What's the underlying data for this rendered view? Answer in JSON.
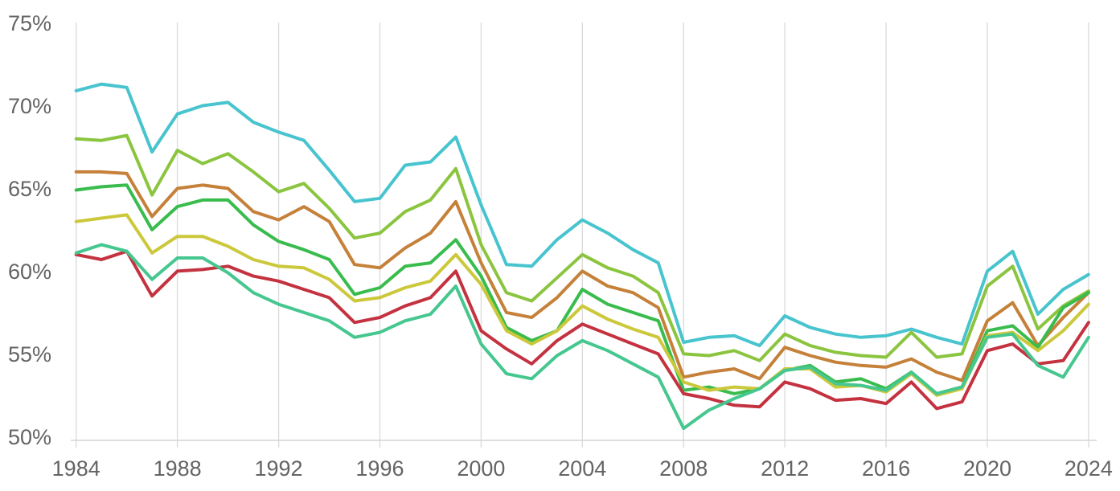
{
  "chart_data": {
    "type": "line",
    "title": "",
    "xlabel": "",
    "ylabel": "",
    "legend": "none",
    "grid": "vertical-only",
    "xlim": [
      1984,
      2024
    ],
    "ylim": [
      50,
      75
    ],
    "y_tick_labels": [
      "75%",
      "70%",
      "65%",
      "60%",
      "55%",
      "50%"
    ],
    "y_tick_values": [
      75,
      70,
      65,
      60,
      55,
      50
    ],
    "x_tick_labels": [
      "1984",
      "1988",
      "1992",
      "1996",
      "2000",
      "2004",
      "2008",
      "2012",
      "2016",
      "2020",
      "2024"
    ],
    "x_tick_values": [
      1984,
      1988,
      1992,
      1996,
      2000,
      2004,
      2008,
      2012,
      2016,
      2020,
      2024
    ],
    "x": [
      1984,
      1985,
      1986,
      1987,
      1988,
      1989,
      1990,
      1991,
      1992,
      1993,
      1994,
      1995,
      1996,
      1997,
      1998,
      1999,
      2000,
      2001,
      2002,
      2003,
      2004,
      2005,
      2006,
      2007,
      2008,
      2009,
      2010,
      2011,
      2012,
      2013,
      2014,
      2015,
      2016,
      2017,
      2018,
      2019,
      2020,
      2021,
      2022,
      2023,
      2024
    ],
    "series": [
      {
        "name": "cyan",
        "color": "#48C4CF",
        "values": [
          70.9,
          71.3,
          71.1,
          67.2,
          69.5,
          70.0,
          70.2,
          69.0,
          68.4,
          67.9,
          66.1,
          64.2,
          64.4,
          66.4,
          66.6,
          68.1,
          64.0,
          60.4,
          60.3,
          61.9,
          63.1,
          62.3,
          61.3,
          60.5,
          55.7,
          56.0,
          56.1,
          55.5,
          57.3,
          56.6,
          56.2,
          56.0,
          56.1,
          56.5,
          56.0,
          55.6,
          60.0,
          61.2,
          57.4,
          58.9,
          59.8
        ]
      },
      {
        "name": "yellow-green",
        "color": "#8BC53F",
        "values": [
          68.0,
          67.9,
          68.2,
          64.6,
          67.3,
          66.5,
          67.1,
          66.0,
          64.8,
          65.3,
          63.8,
          62.0,
          62.3,
          63.6,
          64.3,
          66.2,
          61.6,
          58.7,
          58.2,
          59.6,
          61.0,
          60.2,
          59.7,
          58.7,
          55.0,
          54.9,
          55.2,
          54.6,
          56.2,
          55.5,
          55.1,
          54.9,
          54.8,
          56.3,
          54.8,
          55.0,
          59.1,
          60.3,
          56.5,
          57.9,
          58.8
        ]
      },
      {
        "name": "orange",
        "color": "#C5813A",
        "values": [
          66.0,
          66.0,
          65.9,
          63.3,
          65.0,
          65.2,
          65.0,
          63.6,
          63.1,
          63.9,
          63.0,
          60.4,
          60.2,
          61.4,
          62.3,
          64.2,
          60.5,
          57.5,
          57.2,
          58.4,
          60.0,
          59.1,
          58.7,
          57.8,
          53.6,
          53.9,
          54.1,
          53.5,
          55.4,
          54.9,
          54.5,
          54.3,
          54.2,
          54.7,
          53.9,
          53.4,
          57.0,
          58.1,
          55.5,
          57.2,
          58.7
        ]
      },
      {
        "name": "green",
        "color": "#39BC4D",
        "values": [
          64.9,
          65.1,
          65.2,
          62.5,
          63.9,
          64.3,
          64.3,
          62.8,
          61.8,
          61.3,
          60.7,
          58.6,
          59.0,
          60.3,
          60.5,
          61.9,
          59.7,
          56.6,
          55.8,
          56.4,
          58.9,
          58.0,
          57.5,
          57.0,
          52.8,
          53.0,
          52.6,
          52.9,
          54.0,
          54.3,
          53.3,
          53.5,
          52.9,
          53.9,
          52.6,
          53.0,
          56.4,
          56.7,
          55.4,
          57.8,
          58.7
        ]
      },
      {
        "name": "yellow",
        "color": "#CCC83C",
        "values": [
          63.0,
          63.2,
          63.4,
          61.1,
          62.1,
          62.1,
          61.5,
          60.7,
          60.3,
          60.2,
          59.5,
          58.2,
          58.4,
          59.0,
          59.4,
          61.0,
          59.2,
          56.4,
          55.6,
          56.4,
          57.9,
          57.1,
          56.5,
          56.0,
          53.3,
          52.8,
          53.0,
          52.9,
          54.1,
          54.1,
          53.0,
          53.1,
          52.7,
          53.8,
          52.5,
          52.9,
          56.1,
          56.3,
          55.2,
          56.4,
          58.0
        ]
      },
      {
        "name": "red",
        "color": "#C43240",
        "values": [
          61.0,
          60.7,
          61.2,
          58.5,
          60.0,
          60.1,
          60.3,
          59.7,
          59.4,
          58.9,
          58.4,
          56.9,
          57.2,
          57.9,
          58.4,
          60.0,
          56.4,
          55.3,
          54.4,
          55.8,
          56.8,
          56.2,
          55.6,
          55.0,
          52.6,
          52.3,
          51.9,
          51.8,
          53.3,
          52.9,
          52.2,
          52.3,
          52.0,
          53.3,
          51.7,
          52.1,
          55.2,
          55.6,
          54.4,
          54.6,
          56.9
        ]
      },
      {
        "name": "emerald",
        "color": "#45C78F",
        "values": [
          61.1,
          61.6,
          61.2,
          59.5,
          60.8,
          60.8,
          59.9,
          58.7,
          58.0,
          57.5,
          57.0,
          56.0,
          56.3,
          57.0,
          57.4,
          59.1,
          55.6,
          53.8,
          53.5,
          54.9,
          55.8,
          55.2,
          54.4,
          53.6,
          50.5,
          51.6,
          52.3,
          52.9,
          54.0,
          54.2,
          53.2,
          53.1,
          52.8,
          53.9,
          52.6,
          53.0,
          56.0,
          56.2,
          54.3,
          53.6,
          56.0
        ]
      }
    ],
    "style": {
      "gridline_color": "#DCDCDC",
      "axis_line_color": "#D4D4D4",
      "tick_text_color": "#646464",
      "background_color": "#FFFFFF",
      "line_width": 4
    }
  }
}
